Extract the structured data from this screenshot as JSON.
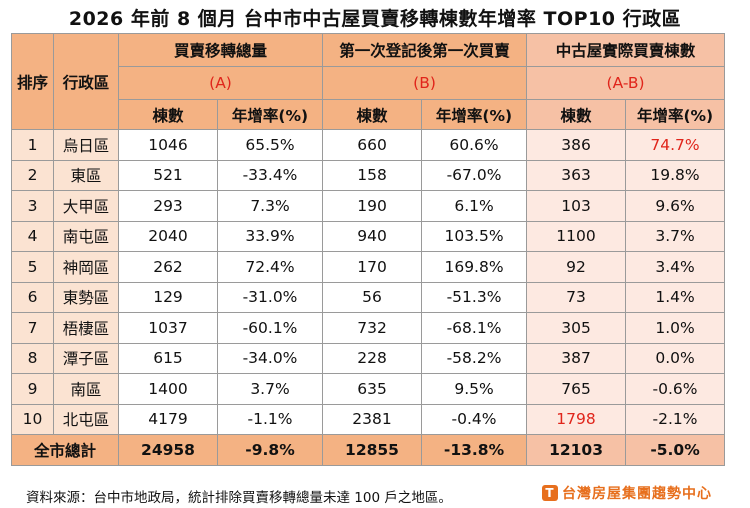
{
  "title": "2026 年前 8 個月  台中市中古屋買賣移轉棟數年增率 TOP10 行政區",
  "headers": {
    "rank": "排序",
    "district": "行政區",
    "groupA": "買賣移轉總量",
    "groupA_code": "(A)",
    "groupB": "第一次登記後第一次買賣",
    "groupB_code": "(B)",
    "groupC": "中古屋實際買賣棟數",
    "groupC_code": "(A-B)",
    "count": "棟數",
    "growth": "年增率(%)"
  },
  "rows": [
    {
      "rank": "1",
      "district": "烏日區",
      "a_count": "1046",
      "a_growth": "65.5%",
      "b_count": "660",
      "b_growth": "60.6%",
      "c_count": "386",
      "c_growth": "74.7%"
    },
    {
      "rank": "2",
      "district": "東區",
      "a_count": "521",
      "a_growth": "-33.4%",
      "b_count": "158",
      "b_growth": "-67.0%",
      "c_count": "363",
      "c_growth": "19.8%"
    },
    {
      "rank": "3",
      "district": "大甲區",
      "a_count": "293",
      "a_growth": "7.3%",
      "b_count": "190",
      "b_growth": "6.1%",
      "c_count": "103",
      "c_growth": "9.6%"
    },
    {
      "rank": "4",
      "district": "南屯區",
      "a_count": "2040",
      "a_growth": "33.9%",
      "b_count": "940",
      "b_growth": "103.5%",
      "c_count": "1100",
      "c_growth": "3.7%"
    },
    {
      "rank": "5",
      "district": "神岡區",
      "a_count": "262",
      "a_growth": "72.4%",
      "b_count": "170",
      "b_growth": "169.8%",
      "c_count": "92",
      "c_growth": "3.4%"
    },
    {
      "rank": "6",
      "district": "東勢區",
      "a_count": "129",
      "a_growth": "-31.0%",
      "b_count": "56",
      "b_growth": "-51.3%",
      "c_count": "73",
      "c_growth": "1.4%"
    },
    {
      "rank": "7",
      "district": "梧棲區",
      "a_count": "1037",
      "a_growth": "-60.1%",
      "b_count": "732",
      "b_growth": "-68.1%",
      "c_count": "305",
      "c_growth": "1.0%"
    },
    {
      "rank": "8",
      "district": "潭子區",
      "a_count": "615",
      "a_growth": "-34.0%",
      "b_count": "228",
      "b_growth": "-58.2%",
      "c_count": "387",
      "c_growth": "0.0%"
    },
    {
      "rank": "9",
      "district": "南區",
      "a_count": "1400",
      "a_growth": "3.7%",
      "b_count": "635",
      "b_growth": "9.5%",
      "c_count": "765",
      "c_growth": "-0.6%"
    },
    {
      "rank": "10",
      "district": "北屯區",
      "a_count": "4179",
      "a_growth": "-1.1%",
      "b_count": "2381",
      "b_growth": "-0.4%",
      "c_count": "1798",
      "c_growth": "-2.1%"
    }
  ],
  "total": {
    "label": "全市總計",
    "a_count": "24958",
    "a_growth": "-9.8%",
    "b_count": "12855",
    "b_growth": "-13.8%",
    "c_count": "12103",
    "c_growth": "-5.0%"
  },
  "footer": {
    "note": "資料來源：台中市地政局，統計排除買賣移轉總量未達 100 戶之地區。",
    "brand": "台灣房屋集團趨勢中心",
    "brand_logo": "T"
  },
  "colors": {
    "header": "#f4b283",
    "header_pink": "#f6c1a5",
    "highlight_red": "#e0251b",
    "brand_orange": "#e76f1d"
  }
}
